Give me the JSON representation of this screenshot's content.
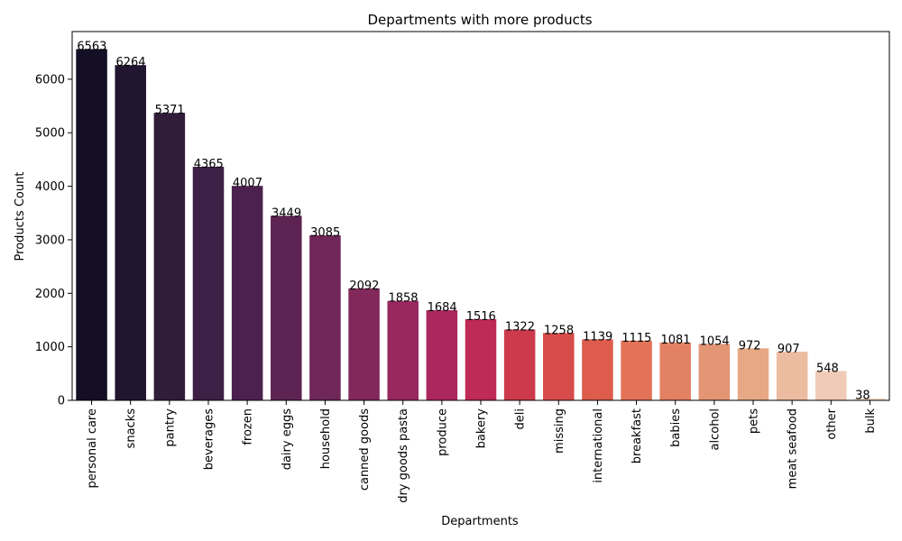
{
  "chart_data": {
    "type": "bar",
    "title": "Departments with more products",
    "xlabel": "Departments",
    "ylabel": "Products Count",
    "categories": [
      "personal care",
      "snacks",
      "pantry",
      "beverages",
      "frozen",
      "dairy eggs",
      "household",
      "canned goods",
      "dry goods pasta",
      "produce",
      "bakery",
      "deli",
      "missing",
      "international",
      "breakfast",
      "babies",
      "alcohol",
      "pets",
      "meat seafood",
      "other",
      "bulk"
    ],
    "values": [
      6563,
      6264,
      5371,
      4365,
      4007,
      3449,
      3085,
      2092,
      1858,
      1684,
      1516,
      1322,
      1258,
      1139,
      1115,
      1081,
      1054,
      972,
      907,
      548,
      38
    ],
    "colors": [
      "#140f25",
      "#22152f",
      "#301d3a",
      "#3e1f45",
      "#4c2150",
      "#5d2453",
      "#6f2658",
      "#83285b",
      "#98285d",
      "#ab275e",
      "#be2b55",
      "#cd3a4c",
      "#d74c4a",
      "#dd5c4c",
      "#e27358",
      "#e28163",
      "#e49574",
      "#e7a985",
      "#ecbca1",
      "#f0cbb6",
      "#f6ddc9"
    ],
    "yticks": [
      0,
      1000,
      2000,
      3000,
      4000,
      5000,
      6000
    ],
    "ylim": [
      0,
      6891
    ],
    "grid": false,
    "legend": "none"
  }
}
